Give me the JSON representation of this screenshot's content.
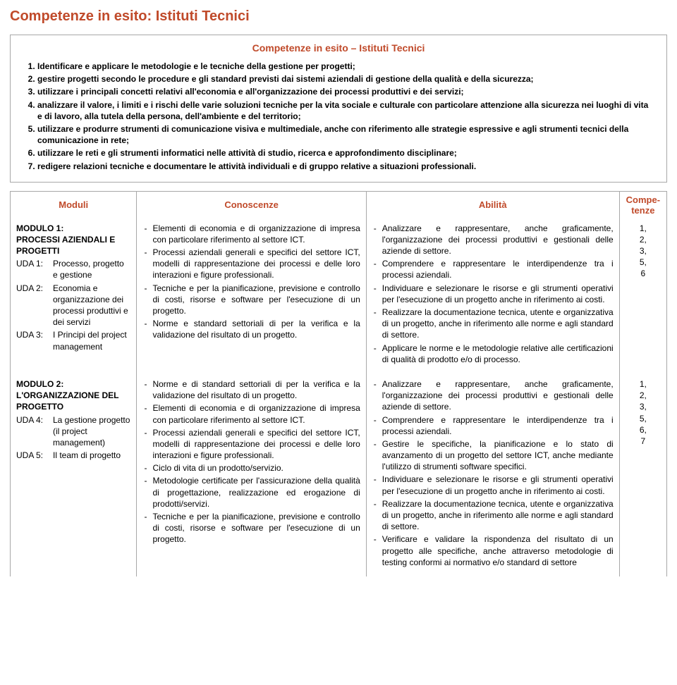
{
  "colors": {
    "accent": "#c04a2a",
    "border": "#a8a8a8",
    "text": "#000000",
    "background": "#ffffff"
  },
  "title": "Competenze in esito: Istituti Tecnici",
  "box_title": "Competenze in esito – Istituti Tecnici",
  "competenze": [
    "Identificare e applicare le metodologie e le tecniche della gestione per progetti;",
    "gestire progetti secondo le procedure e gli standard previsti dai sistemi aziendali di gestione della qualità e della sicurezza;",
    "utilizzare i principali concetti relativi all'economia e all'organizzazione dei processi produttivi e dei servizi;",
    "analizzare il valore, i limiti e i rischi delle varie soluzioni tecniche per la vita sociale e culturale con particolare attenzione alla sicurezza nei luoghi di vita e di lavoro, alla tutela della persona, dell'ambiente e del territorio;",
    "utilizzare e produrre strumenti di comunicazione visiva e multimediale, anche con riferimento alle strategie espressive e agli strumenti tecnici della comunicazione in rete;",
    "utilizzare le reti e gli strumenti informatici nelle attività di studio, ricerca e approfondimento disciplinare;",
    "redigere relazioni tecniche e documentare le attività individuali e di gruppo relative a situazioni professionali."
  ],
  "headers": {
    "moduli": "Moduli",
    "conoscenze": "Conoscenze",
    "abilita": "Abilità",
    "compe": "Compe-tenze"
  },
  "rows": [
    {
      "modulo_title": "MODULO 1:\nPROCESSI AZIENDALI E PROGETTI",
      "uda": [
        {
          "label": "UDA 1:",
          "text": "Processo, progetto e gestione"
        },
        {
          "label": "UDA 2:",
          "text": "Economia e organizzazione dei processi produttivi e dei servizi"
        },
        {
          "label": "UDA 3:",
          "text": "I Principi del project management"
        }
      ],
      "conoscenze": [
        "Elementi di economia e di organizzazione di impresa con particolare riferimento al settore ICT.",
        "Processi aziendali generali e specifici del settore ICT, modelli di rappresentazione dei processi e delle loro interazioni e figure professionali.",
        "Tecniche e per la pianificazione, previsione e controllo di costi, risorse e software per l'esecuzione di un progetto.",
        "Norme e standard settoriali di per la verifica e la validazione del risultato di un progetto."
      ],
      "abilita": [
        "Analizzare e rappresentare, anche graficamente, l'organizzazione dei processi produttivi e gestionali delle aziende di settore.",
        "Comprendere e rappresentare le interdipendenze tra i processi aziendali.",
        "Individuare e selezionare le risorse e gli strumenti operativi per l'esecuzione di un progetto anche in riferimento ai costi.",
        "Realizzare la documentazione tecnica, utente e organizzativa di un progetto, anche in riferimento alle norme e agli standard di settore.",
        "Applicare le norme e le metodologie relative alle certificazioni di qualità di prodotto e/o di processo."
      ],
      "compe": [
        "1,",
        "2,",
        "3,",
        "5,",
        "6"
      ]
    },
    {
      "modulo_title": "MODULO 2:\nL'ORGANIZZAZIONE DEL PROGETTO",
      "uda": [
        {
          "label": "UDA 4:",
          "text": "La gestione progetto (il project management)"
        },
        {
          "label": "UDA 5:",
          "text": "Il team di progetto"
        }
      ],
      "conoscenze": [
        "Norme e di standard settoriali di per la verifica e la validazione del risultato di un progetto.",
        "Elementi di economia e di organizzazione di impresa con particolare riferimento al settore ICT.",
        "Processi aziendali generali e specifici del settore ICT, modelli di rappresentazione dei processi e delle loro interazioni e figure professionali.",
        "Ciclo di vita di un prodotto/servizio.",
        "Metodologie certificate per l'assicurazione della qualità di progettazione, realizzazione ed erogazione di prodotti/servizi.",
        "Tecniche e per la pianificazione, previsione e controllo di costi, risorse e software per l'esecuzione di un progetto."
      ],
      "abilita": [
        "Analizzare e rappresentare, anche graficamente, l'organizzazione dei processi produttivi e gestionali delle aziende di settore.",
        "Comprendere e rappresentare le interdipendenze tra i processi aziendali.",
        "Gestire le specifiche, la pianificazione e lo stato di avanzamento di un progetto del settore ICT, anche mediante l'utilizzo di strumenti software specifici.",
        "Individuare e selezionare le risorse e gli strumenti operativi per l'esecuzione di un progetto anche in riferimento ai costi.",
        "Realizzare la documentazione tecnica, utente e organizzativa di un progetto, anche in riferimento alle norme e agli standard di settore.",
        "Verificare e validare la rispondenza del risultato di un progetto alle specifiche, anche attraverso metodologie di testing conformi ai normativo e/o standard di settore"
      ],
      "compe": [
        "1,",
        "2,",
        "3,",
        "5,",
        "6,",
        "7"
      ]
    }
  ]
}
